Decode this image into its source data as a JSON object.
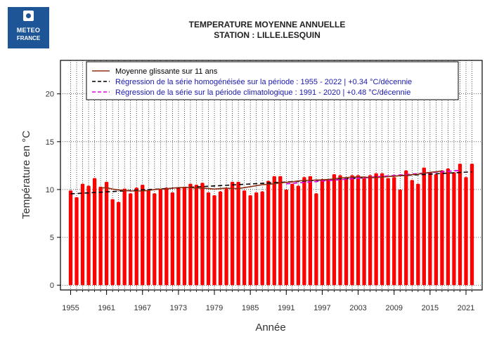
{
  "logo": {
    "line1": "METEO",
    "line2": "FRANCE"
  },
  "header": {
    "title_line1": "TEMPERATURE MOYENNE ANNUELLE",
    "title_line2": "STATION : LILLE.LESQUIN"
  },
  "colors": {
    "bars": "#ff0000",
    "moving_average": "#8b2e14",
    "regression_full": "#000000",
    "regression_climato": "#e000e0",
    "legend_text_2": "#1a1aa8"
  },
  "chart_data": {
    "type": "bar",
    "title": "TEMPERATURE MOYENNE ANNUELLE - STATION : LILLE.LESQUIN",
    "xlabel": "Année",
    "ylabel": "Température en °C",
    "ylim": [
      -0.5,
      23.5
    ],
    "xlim": [
      1953.3,
      2023.7
    ],
    "yticks": [
      0,
      5,
      10,
      15,
      20
    ],
    "xticks": [
      1955,
      1961,
      1967,
      1973,
      1979,
      1985,
      1991,
      1997,
      2003,
      2009,
      2015,
      2021
    ],
    "grid": true,
    "legend_position": "top",
    "legend": [
      "Moyenne glissante sur 11 ans",
      "Régression de la série homogénéisée sur la période : 1955 - 2022 | +0.34 °C/décennie",
      "Régression de la série sur la période climatologique : 1991 - 2020 | +0.48 °C/décennie"
    ],
    "years": [
      1955,
      1956,
      1957,
      1958,
      1959,
      1960,
      1961,
      1962,
      1963,
      1964,
      1965,
      1966,
      1967,
      1968,
      1969,
      1970,
      1971,
      1972,
      1973,
      1974,
      1975,
      1976,
      1977,
      1978,
      1979,
      1980,
      1981,
      1982,
      1983,
      1984,
      1985,
      1986,
      1987,
      1988,
      1989,
      1990,
      1991,
      1992,
      1993,
      1994,
      1995,
      1996,
      1997,
      1998,
      1999,
      2000,
      2001,
      2002,
      2003,
      2004,
      2005,
      2006,
      2007,
      2008,
      2009,
      2010,
      2011,
      2012,
      2013,
      2014,
      2015,
      2016,
      2017,
      2018,
      2019,
      2020,
      2021,
      2022
    ],
    "values": [
      9.9,
      9.2,
      10.6,
      10.4,
      11.2,
      10.3,
      10.8,
      9.0,
      8.7,
      10.1,
      9.6,
      10.2,
      10.5,
      9.9,
      9.6,
      10.1,
      10.2,
      9.7,
      10.2,
      10.3,
      10.6,
      10.5,
      10.7,
      9.7,
      9.4,
      9.8,
      10.1,
      10.8,
      10.8,
      9.9,
      9.4,
      9.7,
      9.8,
      10.9,
      11.4,
      11.4,
      10.0,
      10.6,
      10.4,
      11.3,
      11.4,
      9.6,
      11.1,
      11.1,
      11.6,
      11.5,
      11.1,
      11.5,
      11.5,
      11.2,
      11.5,
      11.7,
      11.7,
      11.2,
      11.3,
      10.0,
      12.0,
      11.0,
      10.6,
      12.3,
      11.8,
      11.6,
      12.0,
      12.2,
      11.8,
      12.7,
      11.3,
      12.7
    ],
    "moving_average": {
      "years": [
        1960,
        1961,
        1962,
        1963,
        1964,
        1965,
        1966,
        1967,
        1968,
        1969,
        1970,
        1971,
        1972,
        1973,
        1974,
        1975,
        1976,
        1977,
        1978,
        1979,
        1980,
        1981,
        1982,
        1983,
        1984,
        1985,
        1986,
        1987,
        1988,
        1989,
        1990,
        1991,
        1992,
        1993,
        1994,
        1995,
        1996,
        1997,
        1998,
        1999,
        2000,
        2001,
        2002,
        2003,
        2004,
        2005,
        2006,
        2007,
        2008,
        2009,
        2010,
        2011,
        2012,
        2013,
        2014,
        2015,
        2016,
        2017
      ],
      "values": [
        10.15,
        10.2,
        10.05,
        9.95,
        9.9,
        9.85,
        9.85,
        9.85,
        9.9,
        10.0,
        10.05,
        10.05,
        10.15,
        10.2,
        10.2,
        10.2,
        10.15,
        10.15,
        10.1,
        10.05,
        10.1,
        10.15,
        10.1,
        10.1,
        10.2,
        10.3,
        10.4,
        10.5,
        10.55,
        10.6,
        10.7,
        10.75,
        10.8,
        10.9,
        10.95,
        10.95,
        11.0,
        11.0,
        11.05,
        11.1,
        11.2,
        11.25,
        11.3,
        11.3,
        11.3,
        11.25,
        11.25,
        11.3,
        11.35,
        11.4,
        11.45,
        11.5,
        11.55,
        11.6,
        11.7,
        11.8,
        11.85,
        11.95
      ]
    },
    "regression_full": {
      "x": [
        1955,
        2022
      ],
      "y": [
        9.55,
        11.85
      ]
    },
    "regression_climato": {
      "x": [
        1991,
        2020
      ],
      "y": [
        10.6,
        12.0
      ]
    }
  }
}
